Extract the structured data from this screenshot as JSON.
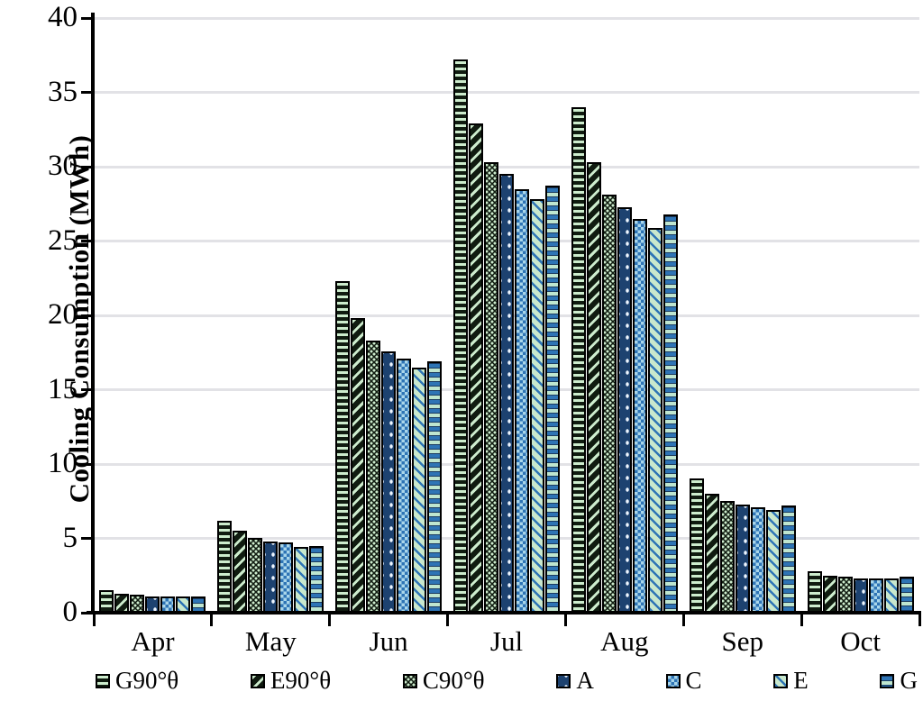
{
  "chart_data": {
    "type": "bar",
    "title": "",
    "xlabel": "",
    "ylabel": "Cooling Consumption (MWh)",
    "ylim": [
      0,
      40
    ],
    "yticks": [
      0,
      5,
      10,
      15,
      20,
      25,
      30,
      35,
      40
    ],
    "grid": true,
    "legend_position": "bottom",
    "categories": [
      "Apr",
      "May",
      "Jun",
      "Jul",
      "Aug",
      "Sep",
      "Oct"
    ],
    "series": [
      {
        "name": "G90°θ",
        "pattern": "p-g90",
        "pattern_desc": "pale-green horizontal stripes on black",
        "values": [
          1.5,
          6.2,
          22.3,
          37.2,
          34.0,
          9.0,
          2.8
        ]
      },
      {
        "name": "E90°θ",
        "pattern": "p-e90",
        "pattern_desc": "pale-green diagonal stripes on black",
        "values": [
          1.3,
          5.5,
          19.8,
          32.9,
          30.3,
          8.0,
          2.5
        ]
      },
      {
        "name": "C90°θ",
        "pattern": "p-c90",
        "pattern_desc": "pale-green dot grid on black",
        "values": [
          1.2,
          5.0,
          18.3,
          30.3,
          28.1,
          7.5,
          2.4
        ]
      },
      {
        "name": "A",
        "pattern": "p-a",
        "pattern_desc": "white dots on dark navy",
        "values": [
          1.1,
          4.8,
          17.6,
          29.5,
          27.3,
          7.3,
          2.3
        ]
      },
      {
        "name": "C",
        "pattern": "p-c",
        "pattern_desc": "blue / light-blue checkerboard",
        "values": [
          1.1,
          4.7,
          17.1,
          28.5,
          26.5,
          7.1,
          2.3
        ]
      },
      {
        "name": "E",
        "pattern": "p-e",
        "pattern_desc": "blue diagonal stripes on pale green",
        "values": [
          1.1,
          4.4,
          16.5,
          27.8,
          25.9,
          6.9,
          2.3
        ]
      },
      {
        "name": "G",
        "pattern": "p-g",
        "pattern_desc": "blue and pale-green horizontal bands",
        "values": [
          1.1,
          4.5,
          16.9,
          28.7,
          26.8,
          7.2,
          2.4
        ]
      }
    ],
    "colors": {
      "pale_green": "#cdeccd",
      "black_green": "#101b10",
      "navy": "#1d4270",
      "blue": "#2e74b5",
      "light_blue": "#a9d6ea",
      "gridline": "#e2e2e6",
      "axis": "#000000",
      "background": "#ffffff"
    }
  }
}
